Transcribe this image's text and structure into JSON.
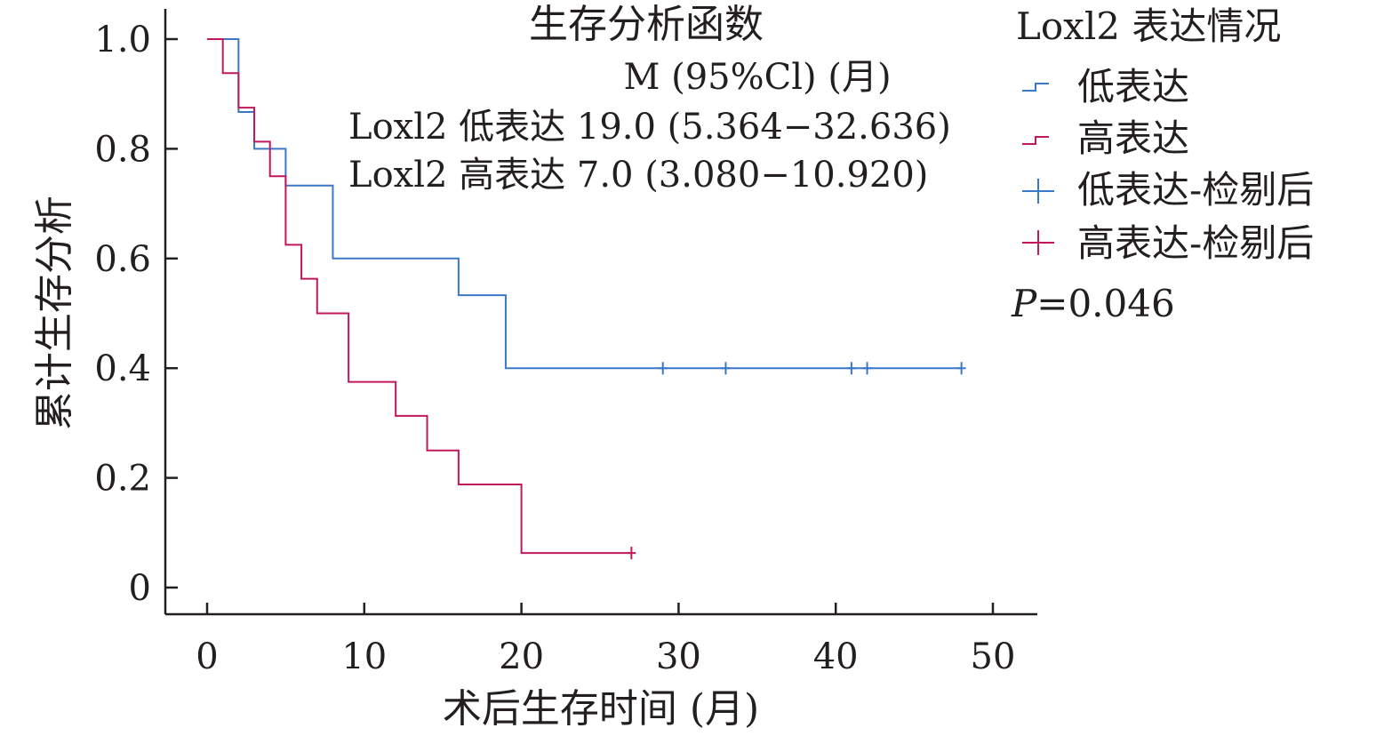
{
  "chart_data": {
    "type": "line",
    "subtype": "kaplan-meier",
    "title": "生存分析函数",
    "xlabel": "术后生存时间 (月)",
    "ylabel": "累计生存分析",
    "xlim": [
      0,
      50
    ],
    "ylim": [
      0,
      1.0
    ],
    "x_ticks": [
      0,
      10,
      20,
      30,
      40,
      50
    ],
    "x_tick_labels": [
      "0",
      "10",
      "20",
      "30",
      "40",
      "50"
    ],
    "y_ticks": [
      0,
      0.2,
      0.4,
      0.6,
      0.8,
      1.0
    ],
    "y_tick_labels": [
      "0",
      "0.2",
      "0.4",
      "0.6",
      "0.8",
      "1.0"
    ],
    "grid": false,
    "legend_position": "right",
    "annotations": [
      "M (95%Cl) (月)",
      "Loxl2 低表达 19.0 (5.364−32.636)",
      "Loxl2 高表达 7.0 (3.080−10.920)"
    ],
    "legend": {
      "title": "Loxl2 表达情况",
      "entries": [
        "低表达",
        "高表达",
        "低表达-检剔后",
        "高表达-检剔后"
      ],
      "p_label": "P",
      "p_value": "=0.046"
    },
    "series": [
      {
        "name": "低表达",
        "color": "#3a78c9",
        "steps": [
          [
            0,
            1.0
          ],
          [
            2,
            0.867
          ],
          [
            3,
            0.8
          ],
          [
            5,
            0.733
          ],
          [
            8,
            0.6
          ],
          [
            16,
            0.533
          ],
          [
            19,
            0.4
          ]
        ],
        "end_x": 48,
        "censored": [
          29,
          33,
          41,
          42,
          48
        ]
      },
      {
        "name": "高表达",
        "color": "#c2185b",
        "steps": [
          [
            0,
            1.0
          ],
          [
            1,
            0.938
          ],
          [
            2,
            0.875
          ],
          [
            3,
            0.813
          ],
          [
            4,
            0.75
          ],
          [
            5,
            0.625
          ],
          [
            6,
            0.563
          ],
          [
            7,
            0.5
          ],
          [
            9,
            0.375
          ],
          [
            12,
            0.313
          ],
          [
            14,
            0.25
          ],
          [
            16,
            0.188
          ],
          [
            20,
            0.063
          ]
        ],
        "end_x": 27,
        "censored": [
          27
        ]
      }
    ]
  }
}
